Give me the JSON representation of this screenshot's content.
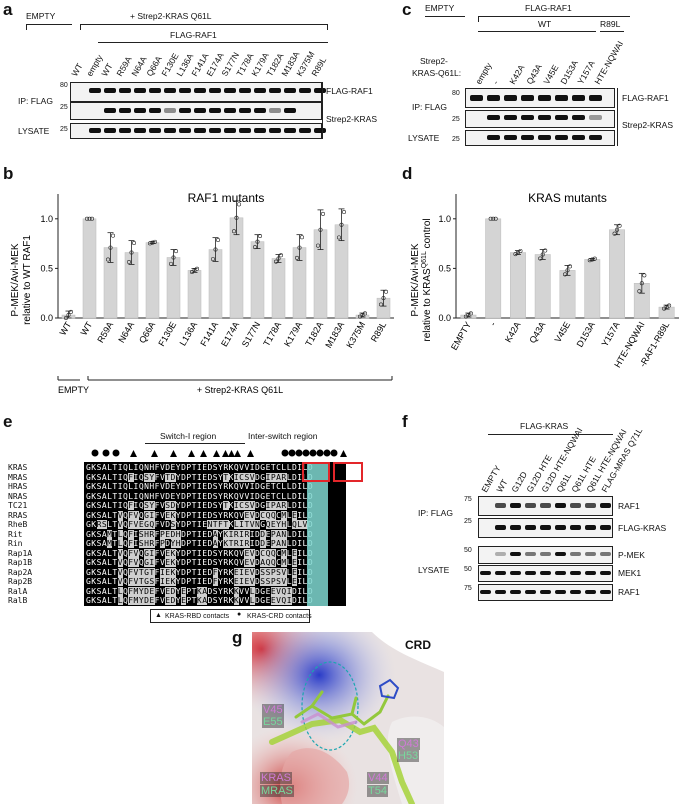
{
  "panel_labels": {
    "a": "a",
    "b": "b",
    "c": "c",
    "d": "d",
    "e": "e",
    "f": "f",
    "g": "g"
  },
  "panel_a": {
    "empty_label": "EMPTY",
    "kras_label": "+ Strep2-KRAS Q61L",
    "flag_raf1_label": "FLAG-RAF1",
    "lanes": [
      "WT",
      "empty",
      "WT",
      "R59A",
      "N64A",
      "Q66A",
      "F130E",
      "L136A",
      "F141A",
      "E174A",
      "S177N",
      "T178A",
      "K179A",
      "T182A",
      "M183A",
      "K375M",
      "R89L"
    ],
    "row_labels": {
      "ip": "IP: FLAG",
      "lysate": "LYSATE"
    },
    "mw": {
      "ip1": "80",
      "ip2": "25",
      "lys": "25"
    },
    "band_labels": {
      "raf1": "FLAG-RAF1",
      "kras": "Strep2-KRAS"
    }
  },
  "panel_c": {
    "empty_label": "EMPTY",
    "flag_raf1_label": "FLAG-RAF1",
    "wt_label": "WT",
    "r89l_label": "R89L",
    "strep_label_1": "Strep2-",
    "strep_label_2": "KRAS-Q61L:",
    "lanes": [
      "empty",
      "-",
      "K42A",
      "Q43A",
      "V45E",
      "D153A",
      "Y157A",
      "HTE-NQWAI"
    ],
    "row_labels": {
      "ip": "IP: FLAG",
      "lysate": "LYSATE"
    },
    "mw": {
      "ip1": "80",
      "ip2": "25",
      "lys": "25"
    },
    "band_labels": {
      "raf1": "FLAG-RAF1",
      "kras": "Strep2-KRAS"
    }
  },
  "panel_b_chart": {
    "type": "bar",
    "title": "RAF1 mutants",
    "ylabel_1": "P-MEK/Avi-MEK",
    "ylabel_2": "relative to WT RAF1",
    "ylim": [
      0,
      1.25
    ],
    "yticks": [
      "0.0",
      "0.5",
      "1.0"
    ],
    "categories": [
      "WT",
      "WT",
      "R59A",
      "N64A",
      "Q66A",
      "F130E",
      "L136A",
      "F141A",
      "E174A",
      "S177N",
      "T178A",
      "K179A",
      "T182A",
      "M183A",
      "K375M",
      "R89L"
    ],
    "values": [
      0.03,
      1.0,
      0.71,
      0.66,
      0.76,
      0.61,
      0.48,
      0.69,
      1.01,
      0.77,
      0.6,
      0.71,
      0.89,
      0.94,
      0.03,
      0.2
    ],
    "errors": [
      0.04,
      0.0,
      0.15,
      0.12,
      0.01,
      0.08,
      0.02,
      0.12,
      0.17,
      0.07,
      0.04,
      0.13,
      0.2,
      0.16,
      0.02,
      0.08
    ],
    "footer_empty": "EMPTY",
    "footer_kras": "+ Strep2-KRAS Q61L"
  },
  "panel_d_chart": {
    "type": "bar",
    "title": "KRAS mutants",
    "ylabel_1": "P-MEK/Avi-MEK",
    "ylabel_2": "relative to KRAS",
    "ylabel_sup": "Q61L",
    "ylabel_3": " control",
    "ylim": [
      0,
      1.25
    ],
    "yticks": [
      "0.0",
      "0.5",
      "1.0"
    ],
    "categories": [
      "EMPTY",
      "-",
      "K42A",
      "Q43A",
      "V45E",
      "D153A",
      "Y157A",
      "HTE-NQWAI",
      "-RAF1-R89L"
    ],
    "values": [
      0.03,
      1.0,
      0.66,
      0.64,
      0.48,
      0.59,
      0.89,
      0.35,
      0.11
    ],
    "errors": [
      0.02,
      0.0,
      0.02,
      0.05,
      0.05,
      0.01,
      0.05,
      0.1,
      0.02
    ]
  },
  "panel_e": {
    "switch1": "Switch-I region",
    "interswitch": "Inter-switch region",
    "legend_rbd": "KRAS-RBD contacts",
    "legend_crd": "KRAS-CRD contacts",
    "names": [
      "KRAS",
      "MRAS",
      "HRAS",
      "NRAS",
      "TC21",
      "RRAS",
      "RheB",
      "Rit",
      "Rin",
      "Rap1A",
      "Rap1B",
      "Rap2A",
      "Rap2B",
      "RalA",
      "RalB"
    ],
    "seqs": [
      "GKSALTIQLIQNHFVDEYDPTIEDSYRKQVVIDGETCLLDILD",
      "GKSALTIQFIQSYFVTDYDPTIEDSYTKICSVDGIPARLDILD",
      "GKSALTIQLIQNHFVDEYDPTIEDSYRKQVVIDGETCLLDILD",
      "GKSALTIQLIQNHFVDEYDPTIEDSYRKQVVIDGETCLLDILD",
      "GKSALTIQFIQSYFVSDYDPTIEDSYTKICSVDGIPARLDILD",
      "GKSALTVQFVQGIFVEKYDPTIEDSYRKQVEVDCQQCMLEILD",
      "GKRSLTVQFVEGQFVDSYDPTIENTFTKLITVNGQEYHLQLVD",
      "GKSAMTLQFISHRFPEDHDPTIEDAYKIRIRIDDEPANLDILD",
      "GKSAMTLQFISHRFPDYHDPTIEDAYKTRIRIDDEPANLDILD",
      "GKSALTVQFVQGIFVEKYDPTIEDSYRKQVEVDCQQCMLEILD",
      "GKSALTVQFVQGIFVEKYDPTIEDSYRKQVEVDAQQCMLEILD",
      "GKSALTVQFVTGTFIEKYDPTIEDFYRKEIEVDSSPSVLEILD",
      "GKSALTVQFVTGSFIEKYDPTIEDFYRKEIEVDSSPSVLEILD",
      "GKSALTLQFMYDEFVEDYEPTKADSYRKKVVLDGEEVQIDILD",
      "GKSALTLQFMYDEFVEDYEPTKADSYRKKVVLDGEEVQIDILD"
    ]
  },
  "panel_f": {
    "flag_kras_label": "FLAG-KRAS",
    "lanes": [
      "EMPTY",
      "WT",
      "G12D",
      "G12D HTE",
      "G12D HTE-NQWAI",
      "Q61L",
      "Q61L HTE",
      "Q61L HTE-NQWAI",
      "FLAG-MRAS Q71L"
    ],
    "row_labels": {
      "ip": "IP: FLAG",
      "lysate": "LYSATE"
    },
    "mw": {
      "ip1": "75",
      "ip2": "25",
      "l1": "50",
      "l2": "50",
      "l3": "75"
    },
    "band_labels": {
      "raf1": "RAF1",
      "kras": "FLAG-KRAS",
      "pmek": "P-MEK",
      "mek1": "MEK1",
      "raf1b": "RAF1"
    }
  },
  "panel_g": {
    "crd": "CRD",
    "v45": "V45",
    "e55": "E55",
    "q43": "Q43",
    "h53": "H53",
    "v44": "V44",
    "t54": "T54",
    "kras": "KRAS",
    "mras": "MRAS"
  },
  "colors": {
    "bar": "#d4d4d4",
    "cyan": "#7fd7d0",
    "red": "#e3262a",
    "kras_pink": "#d98bd9",
    "mras_green": "#7cd6a0"
  }
}
